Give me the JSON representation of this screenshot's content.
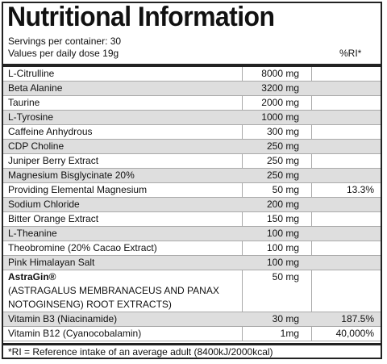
{
  "title": "Nutritional Information",
  "servings": "Servings per container: 30",
  "values_per": "Values per daily dose 19g",
  "ri_header": "%RI*",
  "rows": [
    {
      "name": "L-Citrulline",
      "amount": "8000 mg",
      "ri": ""
    },
    {
      "name": "Beta Alanine",
      "amount": "3200 mg",
      "ri": ""
    },
    {
      "name": "Taurine",
      "amount": "2000 mg",
      "ri": ""
    },
    {
      "name": "L-Tyrosine",
      "amount": "1000 mg",
      "ri": ""
    },
    {
      "name": "Caffeine Anhydrous",
      "amount": "300 mg",
      "ri": ""
    },
    {
      "name": "CDP Choline",
      "amount": "250 mg",
      "ri": ""
    },
    {
      "name": "Juniper Berry Extract",
      "amount": "250 mg",
      "ri": ""
    },
    {
      "name": "Magnesium Bisglycinate 20%",
      "amount": "250 mg",
      "ri": ""
    },
    {
      "name": "Providing Elemental Magnesium",
      "amount": "50 mg",
      "ri": "13.3%"
    },
    {
      "name": "Sodium Chloride",
      "amount": "200 mg",
      "ri": ""
    },
    {
      "name": "Bitter Orange Extract",
      "amount": "150 mg",
      "ri": ""
    },
    {
      "name": "L-Theanine",
      "amount": "100 mg",
      "ri": ""
    },
    {
      "name": "Theobromine (20% Cacao Extract)",
      "amount": "100 mg",
      "ri": ""
    },
    {
      "name": "Pink Himalayan Salt",
      "amount": "100 mg",
      "ri": ""
    }
  ],
  "astragin": {
    "name": "AstraGin®",
    "line2": "(ASTRAGALUS MEMBRANACEUS AND PANAX",
    "line3": "NOTOGINSENG) ROOT EXTRACTS)",
    "amount": "50 mg",
    "ri": ""
  },
  "rows_after": [
    {
      "name": "Vitamin B3 (Niacinamide)",
      "amount": "30 mg",
      "ri": "187.5%"
    },
    {
      "name": "Vitamin B12 (Cyanocobalamin)",
      "amount": "1mg",
      "ri": "40,000%"
    }
  ],
  "footnote": "*RI = Reference intake of an average adult (8400kJ/2000kcal)"
}
